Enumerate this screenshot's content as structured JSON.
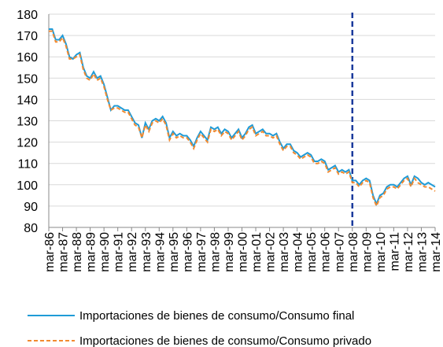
{
  "chart_data": {
    "type": "line",
    "categories": [
      "mar-86",
      null,
      null,
      null,
      "mar-87",
      null,
      null,
      null,
      "mar-88",
      null,
      null,
      null,
      "mar-89",
      null,
      null,
      null,
      "mar-90",
      null,
      null,
      null,
      "mar-91",
      null,
      null,
      null,
      "mar-92",
      null,
      null,
      null,
      "mar-93",
      null,
      null,
      null,
      "mar-94",
      null,
      null,
      null,
      "mar-95",
      null,
      null,
      null,
      "mar-96",
      null,
      null,
      null,
      "mar-97",
      null,
      null,
      null,
      "mar-98",
      null,
      null,
      null,
      "mar-99",
      null,
      null,
      null,
      "mar-00",
      null,
      null,
      null,
      "mar-01",
      null,
      null,
      null,
      "mar-02",
      null,
      null,
      null,
      "mar-03",
      null,
      null,
      null,
      "mar-04",
      null,
      null,
      null,
      "mar-05",
      null,
      null,
      null,
      "mar-06",
      null,
      null,
      null,
      "mar-07",
      null,
      null,
      null,
      "mar-08",
      null,
      null,
      null,
      "mar-09",
      null,
      null,
      null,
      "mar-10",
      null,
      null,
      null,
      "mar-11",
      null,
      null,
      null,
      "mar-12",
      null,
      null,
      null,
      "mar-13",
      null,
      null,
      null,
      "mar-14"
    ],
    "series": [
      {
        "name": "Importaciones de bienes de consumo/Consumo final",
        "color": "#1f9bd7",
        "dash": false,
        "values": [
          173,
          173,
          168,
          168,
          170,
          166,
          160,
          159,
          161,
          162,
          155,
          151,
          150,
          153,
          150,
          151,
          147,
          141,
          135,
          137,
          137,
          136,
          135,
          135,
          132,
          129,
          128,
          122,
          129,
          126,
          130,
          131,
          130,
          132,
          129,
          122,
          125,
          123,
          124,
          123,
          123,
          121,
          118,
          122,
          125,
          123,
          121,
          127,
          126,
          127,
          124,
          126,
          125,
          122,
          124,
          126,
          122,
          124,
          127,
          128,
          124,
          125,
          126,
          124,
          124,
          123,
          124,
          120,
          117,
          119,
          119,
          116,
          115,
          113,
          114,
          115,
          114,
          111,
          111,
          112,
          111,
          107,
          108,
          109,
          106,
          107,
          106,
          107,
          102,
          102,
          100,
          102,
          103,
          102,
          95,
          91,
          95,
          96,
          99,
          100,
          100,
          99,
          101,
          103,
          104,
          100,
          104,
          103,
          101,
          100,
          101,
          100,
          99
        ]
      },
      {
        "name": "Importaciones de bienes de consumo/Consumo privado",
        "color": "#f28a30",
        "dash": true,
        "values": [
          172,
          172,
          167,
          167,
          169,
          165,
          159,
          159,
          160,
          161,
          154,
          150,
          149,
          152,
          149,
          150,
          146,
          140,
          135,
          136,
          136,
          135,
          134,
          134,
          131,
          128,
          127,
          122,
          128,
          125,
          129,
          130,
          129,
          131,
          128,
          121,
          124,
          122,
          123,
          122,
          122,
          120,
          117,
          121,
          124,
          122,
          120,
          126,
          125,
          126,
          123,
          125,
          124,
          121,
          123,
          125,
          121,
          123,
          126,
          127,
          123,
          124,
          125,
          123,
          123,
          122,
          123,
          119,
          116,
          118,
          118,
          115,
          114,
          112,
          113,
          114,
          113,
          110,
          110,
          111,
          110,
          106,
          107,
          108,
          105,
          106,
          105,
          106,
          101,
          101,
          99,
          101,
          102,
          101,
          94,
          90,
          94,
          95,
          98,
          99,
          99,
          98,
          100,
          102,
          103,
          99,
          103,
          101,
          100,
          99,
          99,
          98,
          97
        ]
      }
    ],
    "ylim": [
      80,
      180
    ],
    "yticks": [
      80,
      90,
      100,
      110,
      120,
      130,
      140,
      150,
      160,
      170,
      180
    ],
    "grid": true,
    "vertical_line": "mar-08",
    "vertical_line_color": "#1a3a9c"
  }
}
